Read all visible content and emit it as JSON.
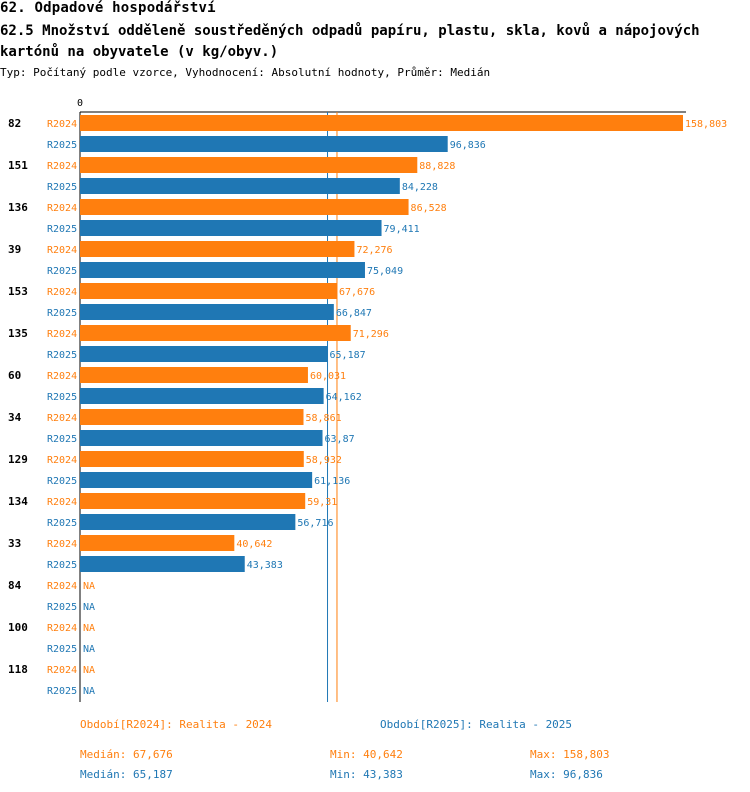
{
  "header": {
    "title": "62. Odpadové hospodářství",
    "subtitle": "62.5 Množství odděleně soustředěných odpadů papíru, plastu, skla, kovů a nápojových kartónů na obyvatele (v kg/obyv.)",
    "type_line": "Typ: Počítaný podle vzorce, Vyhodnocení: Absolutní hodnoty, Průměr: Medián"
  },
  "colors": {
    "r2024": "#ff7f0e",
    "r2025": "#1f77b4",
    "axis": "#000000"
  },
  "chart_data": {
    "type": "bar",
    "orientation": "horizontal",
    "axis_origin_label": "0",
    "xlim": [
      0,
      160
    ],
    "categories": [
      "82",
      "151",
      "136",
      "39",
      "153",
      "135",
      "60",
      "34",
      "129",
      "134",
      "33",
      "84",
      "100",
      "118"
    ],
    "series": [
      {
        "name": "R2024",
        "values": [
          158.803,
          88.828,
          86.528,
          72.276,
          67.676,
          71.296,
          60.031,
          58.861,
          58.932,
          59.31,
          40.642,
          null,
          null,
          null
        ],
        "labels": [
          "158,803",
          "88,828",
          "86,528",
          "72,276",
          "67,676",
          "71,296",
          "60,031",
          "58,861",
          "58,932",
          "59,31",
          "40,642",
          "NA",
          "NA",
          "NA"
        ]
      },
      {
        "name": "R2025",
        "values": [
          96.836,
          84.228,
          79.411,
          75.049,
          66.847,
          65.187,
          64.162,
          63.87,
          61.136,
          56.716,
          43.383,
          null,
          null,
          null
        ],
        "labels": [
          "96,836",
          "84,228",
          "79,411",
          "75,049",
          "66,847",
          "65,187",
          "64,162",
          "63,87",
          "61,136",
          "56,716",
          "43,383",
          "NA",
          "NA",
          "NA"
        ]
      }
    ],
    "median_lines": {
      "R2024": 67.676,
      "R2025": 65.187
    }
  },
  "legend": {
    "r2024_period": "Období[R2024]: Realita - 2024",
    "r2025_period": "Období[R2025]: Realita - 2025",
    "r2024_median": "Medián: 67,676",
    "r2024_min": "Min: 40,642",
    "r2024_max": "Max: 158,803",
    "r2025_median": "Medián: 65,187",
    "r2025_min": "Min: 43,383",
    "r2025_max": "Max: 96,836"
  }
}
